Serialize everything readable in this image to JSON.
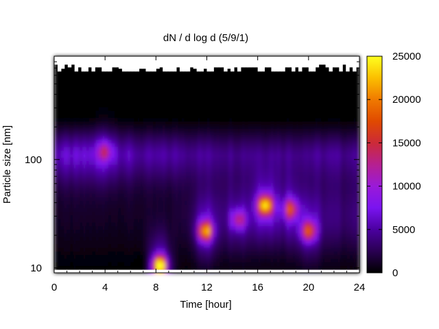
{
  "chart_data": {
    "type": "heatmap",
    "title": "dN / d log d (5/9/1)",
    "xlabel": "Time [hour]",
    "ylabel": "Particle size [nm]",
    "xlim": [
      0,
      24
    ],
    "x_ticks": [
      "0",
      "4",
      "8",
      "12",
      "16",
      "20",
      "24"
    ],
    "x_tick_values": [
      0,
      4,
      8,
      12,
      16,
      20,
      24
    ],
    "y_scale": "log",
    "ylim": [
      9,
      900
    ],
    "y_ticks": [
      "10",
      "100"
    ],
    "y_tick_values": [
      10,
      100
    ],
    "colorbar": {
      "range": [
        0,
        25000
      ],
      "ticks": [
        "0",
        "5000",
        "10000",
        "15000",
        "20000",
        "25000"
      ],
      "tick_values": [
        0,
        5000,
        10000,
        15000,
        20000,
        25000
      ],
      "palette": "black-purple-red-orange-yellow"
    },
    "grid": false,
    "features": [
      {
        "time_center": 8.3,
        "size_center_nm": 10.5,
        "value": 22000
      },
      {
        "time_center": 11.9,
        "size_center_nm": 22,
        "value": 16000
      },
      {
        "time_center": 16.6,
        "size_center_nm": 38,
        "value": 21000
      },
      {
        "time_center": 18.6,
        "size_center_nm": 35,
        "value": 12000
      },
      {
        "time_center": 14.5,
        "size_center_nm": 28,
        "value": 9500
      },
      {
        "time_center": 4.0,
        "size_center_nm": 120,
        "value": 6500
      },
      {
        "time_center": 20.0,
        "size_center_nm": 22,
        "value": 13000
      }
    ],
    "background": {
      "band_peak_size_nm": 130,
      "band_peak_value": 6000,
      "upper_region_value": 0,
      "upper_region_min_size_nm": 250
    }
  }
}
